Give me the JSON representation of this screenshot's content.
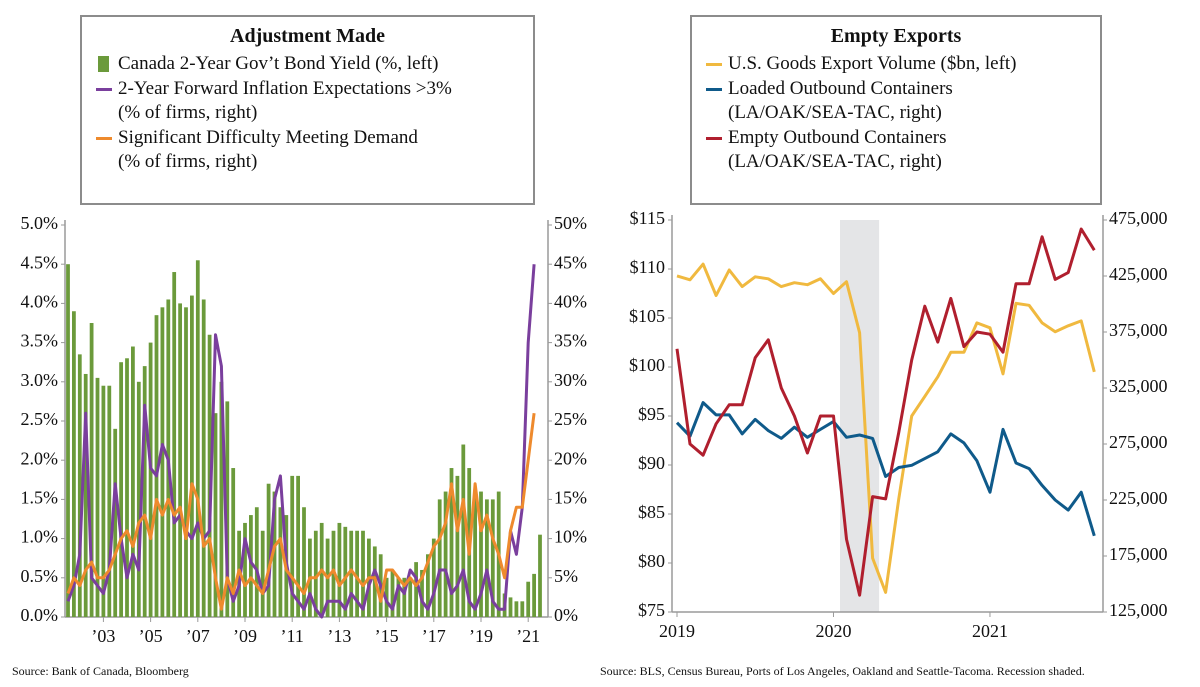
{
  "chart_data": [
    {
      "type": "bar",
      "title": "Adjustment Made",
      "source": "Source: Bank of Canada, Bloomberg",
      "categories": [
        null,
        null,
        null,
        null,
        null,
        null,
        "’03",
        null,
        null,
        null,
        null,
        null,
        null,
        null,
        "’05",
        null,
        null,
        null,
        null,
        null,
        null,
        null,
        "’07",
        null,
        null,
        null,
        null,
        null,
        null,
        null,
        "’09",
        null,
        null,
        null,
        null,
        null,
        null,
        null,
        "’11",
        null,
        null,
        null,
        null,
        null,
        null,
        null,
        "’13",
        null,
        null,
        null,
        null,
        null,
        null,
        null,
        "’15",
        null,
        null,
        null,
        null,
        null,
        null,
        null,
        "’17",
        null,
        null,
        null,
        null,
        null,
        null,
        null,
        "’19",
        null,
        null,
        null,
        null,
        null,
        null,
        null,
        "’21",
        null,
        null
      ],
      "series": [
        {
          "name": "Canada 2-Year Gov’t Bond Yield (%, left)",
          "type": "bar",
          "color": "#6b9a3b",
          "values": [
            4.5,
            3.9,
            3.35,
            3.1,
            3.75,
            3.05,
            2.95,
            2.95,
            2.4,
            3.25,
            3.3,
            3.45,
            3.0,
            3.2,
            3.5,
            3.85,
            3.95,
            4.05,
            4.4,
            4.0,
            3.95,
            4.1,
            4.55,
            4.05,
            3.6,
            2.6,
            3.0,
            2.75,
            1.9,
            1.1,
            1.2,
            1.3,
            1.4,
            1.1,
            1.7,
            1.6,
            1.4,
            1.3,
            1.8,
            1.8,
            1.4,
            1.0,
            1.1,
            1.2,
            1.0,
            1.1,
            1.2,
            1.15,
            1.1,
            1.1,
            1.1,
            1.0,
            0.9,
            0.8,
            0.5,
            0.6,
            0.5,
            0.5,
            0.5,
            0.7,
            0.6,
            0.8,
            1.0,
            1.5,
            1.6,
            1.9,
            1.8,
            2.2,
            1.9,
            1.6,
            1.6,
            1.5,
            1.5,
            1.6,
            0.3,
            0.25,
            0.2,
            0.2,
            0.45,
            0.55,
            1.05
          ]
        },
        {
          "name": "2-Year Forward Inflation Expectations >3%\n(% of firms, right)",
          "type": "line",
          "axis": "y2",
          "color": "#7a3f9d",
          "values": [
            2,
            4,
            8,
            26,
            5,
            4,
            3,
            6,
            17,
            10,
            5,
            8,
            6,
            27,
            19,
            18,
            22,
            20,
            12,
            13,
            11,
            10,
            12,
            10,
            11,
            36,
            32,
            5,
            2,
            4,
            10,
            7,
            6,
            3,
            4,
            15,
            18,
            7,
            3,
            2,
            1,
            3,
            1,
            0,
            2,
            2,
            2,
            1,
            3,
            2,
            1,
            4,
            6,
            4,
            2,
            1,
            4,
            3,
            6,
            5,
            2,
            1,
            3,
            6,
            6,
            3,
            4,
            6,
            2,
            1,
            3,
            6,
            2,
            1,
            1,
            11,
            8,
            14,
            35,
            45,
            null
          ]
        },
        {
          "name": "Significant Difficulty Meeting Demand\n(% of firms, right)",
          "type": "line",
          "axis": "y2",
          "color": "#ee8a2d",
          "values": [
            3,
            5,
            4,
            6,
            7,
            5,
            5,
            6,
            8,
            10,
            11,
            9,
            12,
            13,
            10,
            15,
            13,
            15,
            13,
            14,
            10,
            17,
            15,
            9,
            10,
            5,
            1,
            5,
            3,
            6,
            4,
            5,
            4,
            3,
            6,
            9,
            10,
            6,
            5,
            4,
            3,
            5,
            5,
            6,
            5,
            6,
            4,
            5,
            6,
            5,
            4,
            5,
            5,
            2,
            6,
            6,
            5,
            4,
            5,
            4,
            5,
            7,
            9,
            10,
            12,
            17,
            11,
            15,
            8,
            17,
            11,
            13,
            10,
            8,
            5,
            11,
            14,
            14,
            20,
            26,
            null
          ]
        }
      ],
      "ylim": [
        0,
        5
      ],
      "yticks": [
        {
          "value": 0,
          "label": "0.0%"
        },
        {
          "value": 0.5,
          "label": "0.5%"
        },
        {
          "value": 1,
          "label": "1.0%"
        },
        {
          "value": 1.5,
          "label": "1.5%"
        },
        {
          "value": 2,
          "label": "2.0%"
        },
        {
          "value": 2.5,
          "label": "2.5%"
        },
        {
          "value": 3,
          "label": "3.0%"
        },
        {
          "value": 3.5,
          "label": "3.5%"
        },
        {
          "value": 4,
          "label": "4.0%"
        },
        {
          "value": 4.5,
          "label": "4.5%"
        },
        {
          "value": 5,
          "label": "5.0%"
        }
      ],
      "y2lim": [
        0,
        50
      ],
      "y2ticks": [
        {
          "value": 0,
          "label": "0%"
        },
        {
          "value": 5,
          "label": "5%"
        },
        {
          "value": 10,
          "label": "10%"
        },
        {
          "value": 15,
          "label": "15%"
        },
        {
          "value": 20,
          "label": "20%"
        },
        {
          "value": 25,
          "label": "25%"
        },
        {
          "value": 30,
          "label": "30%"
        },
        {
          "value": 35,
          "label": "35%"
        },
        {
          "value": 40,
          "label": "40%"
        },
        {
          "value": 45,
          "label": "45%"
        },
        {
          "value": 50,
          "label": "50%"
        }
      ]
    },
    {
      "type": "line",
      "title": "Empty Exports",
      "source": "Source: BLS, Census Bureau, Ports of Los Angeles, Oakland and Seattle-Tacoma. Recession shaded.",
      "categories": [
        "2019",
        null,
        null,
        null,
        null,
        null,
        null,
        null,
        null,
        null,
        null,
        null,
        "2020",
        null,
        null,
        null,
        null,
        null,
        null,
        null,
        null,
        null,
        null,
        null,
        "2021",
        null,
        null,
        null,
        null,
        null,
        null,
        null,
        null
      ],
      "recession": [
        13,
        15
      ],
      "series": [
        {
          "name": "U.S. Goods Export Volume ($bn, left)",
          "color": "#f0b93f",
          "values": [
            109.3,
            108.9,
            110.5,
            107.3,
            109.9,
            108.2,
            109.2,
            109.0,
            108.2,
            108.6,
            108.4,
            109.0,
            107.5,
            108.7,
            103.5,
            80.5,
            77.0,
            86.5,
            95.0,
            97.0,
            99.0,
            101.5,
            101.5,
            104.5,
            104.0,
            99.3,
            106.5,
            106.3,
            104.5,
            103.6,
            104.2,
            104.7,
            99.5
          ]
        },
        {
          "name": "Loaded Outbound Containers\n(LA/OAK/SEA-TAC, right)",
          "axis": "y2",
          "color": "#0f5a8a",
          "values": [
            294000,
            282000,
            312000,
            301000,
            301000,
            284000,
            297000,
            287000,
            280000,
            290000,
            281000,
            288000,
            295000,
            281000,
            283000,
            280000,
            246000,
            254000,
            256000,
            262000,
            268000,
            284000,
            276000,
            260000,
            232000,
            288000,
            258000,
            253000,
            238000,
            225000,
            216000,
            232000,
            193000
          ]
        },
        {
          "name": "Empty Outbound Containers\n(LA/OAK/SEA-TAC, right)",
          "axis": "y2",
          "color": "#b01f2e",
          "values": [
            360000,
            275000,
            265000,
            293000,
            310000,
            310000,
            352000,
            368000,
            325000,
            300000,
            267000,
            300000,
            300000,
            190000,
            140000,
            228000,
            226000,
            285000,
            350000,
            398000,
            366000,
            405000,
            362000,
            375000,
            373000,
            357000,
            418000,
            418000,
            460000,
            422000,
            428000,
            467000,
            448000
          ]
        }
      ],
      "ylim": [
        75,
        115
      ],
      "yticks": [
        {
          "value": 75,
          "label": "$75"
        },
        {
          "value": 80,
          "label": "$80"
        },
        {
          "value": 85,
          "label": "$85"
        },
        {
          "value": 90,
          "label": "$90"
        },
        {
          "value": 95,
          "label": "$95"
        },
        {
          "value": 100,
          "label": "$100"
        },
        {
          "value": 105,
          "label": "$105"
        },
        {
          "value": 110,
          "label": "$110"
        },
        {
          "value": 115,
          "label": "$115"
        }
      ],
      "y2lim": [
        125000,
        475000
      ],
      "y2ticks": [
        {
          "value": 125000,
          "label": "125,000"
        },
        {
          "value": 175000,
          "label": "175,000"
        },
        {
          "value": 225000,
          "label": "225,000"
        },
        {
          "value": 275000,
          "label": "275,000"
        },
        {
          "value": 325000,
          "label": "325,000"
        },
        {
          "value": 375000,
          "label": "375,000"
        },
        {
          "value": 425000,
          "label": "425,000"
        },
        {
          "value": 475000,
          "label": "475,000"
        }
      ]
    }
  ]
}
